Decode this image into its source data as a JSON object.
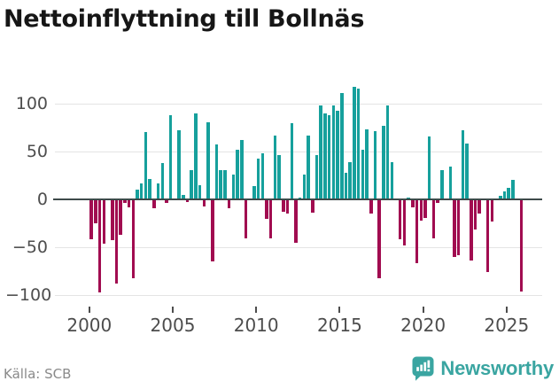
{
  "title": "Nettoinflyttning till Bollnäs",
  "source": "Källa: SCB",
  "logo": {
    "text": "Newsworthy"
  },
  "colors": {
    "positive": "#16a09c",
    "negative": "#a10c50",
    "zero_line": "#3e4a4a",
    "grid": "#e4e4e4",
    "logo_teal": "#3aa5a1"
  },
  "chart_data": {
    "type": "bar",
    "title": "Nettoinflyttning till Bollnäs",
    "period": "2000–2025, quarterly",
    "xlabel": "",
    "ylabel": "",
    "ylim": [
      -110,
      125
    ],
    "grid": true,
    "legend": "none",
    "y_ticks": [
      100,
      50,
      0,
      -50,
      -100
    ],
    "y_tick_labels": [
      "100",
      "50",
      "0",
      "−50",
      "−100"
    ],
    "x_tick_years": [
      2000,
      2005,
      2010,
      2015,
      2020,
      2025
    ],
    "x_tick_labels": [
      "2000",
      "2005",
      "2010",
      "2015",
      "2020",
      "2025"
    ],
    "values": [
      -42,
      -25,
      -97,
      -46,
      0,
      -43,
      -88,
      -37,
      -4,
      -8,
      -82,
      10,
      17,
      70,
      21,
      -9,
      17,
      38,
      -4,
      88,
      0,
      72,
      5,
      -3,
      31,
      90,
      15,
      -7,
      81,
      -65,
      57,
      31,
      31,
      -9,
      26,
      52,
      62,
      -41,
      0,
      14,
      43,
      48,
      -20,
      -41,
      67,
      46,
      -13,
      -15,
      80,
      -45,
      2,
      26,
      67,
      -14,
      46,
      98,
      90,
      88,
      98,
      93,
      111,
      28,
      39,
      118,
      116,
      52,
      73,
      -15,
      71,
      -82,
      77,
      98,
      39,
      0,
      -42,
      -48,
      2,
      -8,
      -67,
      -22,
      -19,
      66,
      -41,
      -4,
      31,
      0,
      34,
      -60,
      -58,
      72,
      58,
      -64,
      -31,
      -15,
      0,
      -76,
      -23,
      0,
      4,
      8,
      12,
      20,
      0,
      -96
    ]
  }
}
